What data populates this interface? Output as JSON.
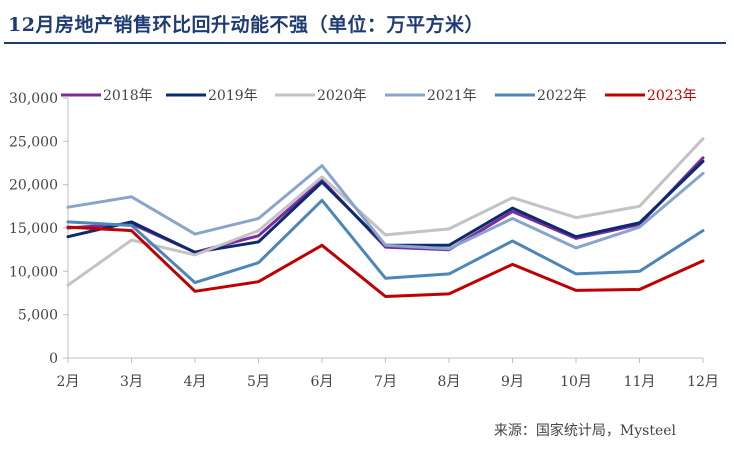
{
  "header": {
    "title": "12月房地产销售环比回升动能不强（单位：万平方米）"
  },
  "footer": {
    "source": "来源：国家统计局，Mysteel"
  },
  "chart_data": {
    "type": "line",
    "title": "12月房地产销售环比回升动能不强（单位：万平方米）",
    "xlabel": "",
    "ylabel": "",
    "categories": [
      "2月",
      "3月",
      "4月",
      "5月",
      "6月",
      "7月",
      "8月",
      "9月",
      "10月",
      "11月",
      "12月"
    ],
    "ylim": [
      0,
      30000
    ],
    "yticks": [
      0,
      5000,
      10000,
      15000,
      20000,
      25000,
      30000
    ],
    "ytick_labels": [
      "0",
      "5,000",
      "10,000",
      "15,000",
      "20,000",
      "25,000",
      "30,000"
    ],
    "grid": false,
    "legend_position": "top",
    "series": [
      {
        "name": "2018年",
        "color": "#7a2c9e",
        "values": [
          15000,
          15500,
          12200,
          14100,
          20500,
          12800,
          12500,
          16900,
          13800,
          15400,
          23100
        ]
      },
      {
        "name": "2019年",
        "color": "#0b2a6f",
        "values": [
          14000,
          15700,
          12200,
          13400,
          20300,
          13000,
          13000,
          17300,
          14000,
          15600,
          22700
        ]
      },
      {
        "name": "2020年",
        "color": "#c3c3c3",
        "values": [
          8400,
          13600,
          11900,
          14700,
          20900,
          14200,
          14900,
          18500,
          16200,
          17500,
          25300
        ]
      },
      {
        "name": "2021年",
        "color": "#8aa5cc",
        "values": [
          17400,
          18600,
          14300,
          16100,
          22200,
          13000,
          12600,
          16100,
          12700,
          15100,
          21300
        ]
      },
      {
        "name": "2022年",
        "color": "#4d86b8",
        "values": [
          15700,
          15300,
          8700,
          11000,
          18200,
          9200,
          9700,
          13500,
          9700,
          10000,
          14700
        ]
      },
      {
        "name": "2023年",
        "color": "#c00000",
        "values": [
          15100,
          14700,
          7700,
          8800,
          13000,
          7100,
          7400,
          10800,
          7800,
          7900,
          11200
        ]
      }
    ],
    "legend_text_colors": [
      "#444444",
      "#444444",
      "#444444",
      "#444444",
      "#444444",
      "#c00000"
    ]
  }
}
